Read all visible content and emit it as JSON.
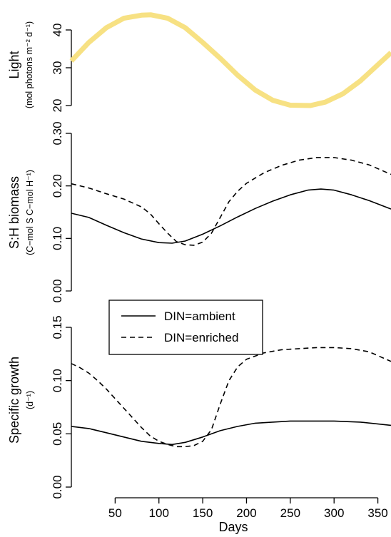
{
  "chart_data": [
    {
      "type": "line",
      "panel": "light",
      "ylabel": "Light",
      "ylabel_units": "(mol photons m⁻² d⁻¹)",
      "xlim": [
        0,
        365
      ],
      "ylim": [
        18,
        46
      ],
      "yticks": [
        "20",
        "30",
        "40"
      ],
      "line_color": "#f7e183",
      "series": [
        {
          "x": [
            0,
            20,
            40,
            60,
            80,
            91,
            110,
            130,
            150,
            170,
            190,
            210,
            230,
            250,
            273,
            290,
            310,
            330,
            350,
            365
          ],
          "values": [
            31.8,
            36.7,
            40.6,
            43.1,
            43.9,
            44.0,
            43.1,
            40.6,
            36.7,
            32.5,
            28.0,
            24.1,
            21.4,
            20.1,
            20.0,
            20.9,
            23.1,
            26.5,
            30.8,
            34.0
          ]
        }
      ]
    },
    {
      "type": "line",
      "panel": "sh-biomass",
      "ylabel": "S:H biomass",
      "ylabel_units": "(C−mol S C−mol H⁻¹)",
      "xlim": [
        0,
        365
      ],
      "ylim": [
        0,
        0.3
      ],
      "yticks": [
        "0.00",
        "0.10",
        "0.20",
        "0.30"
      ],
      "series": [
        {
          "name": "DIN=ambient",
          "dash": "solid",
          "x": [
            0,
            20,
            40,
            60,
            80,
            100,
            115,
            130,
            150,
            170,
            190,
            210,
            230,
            250,
            270,
            285,
            300,
            320,
            340,
            365
          ],
          "values": [
            0.148,
            0.14,
            0.125,
            0.111,
            0.099,
            0.092,
            0.091,
            0.095,
            0.108,
            0.124,
            0.141,
            0.157,
            0.171,
            0.183,
            0.192,
            0.194,
            0.192,
            0.183,
            0.172,
            0.156
          ]
        },
        {
          "name": "DIN=enriched",
          "dash": "dashed",
          "x": [
            0,
            20,
            40,
            60,
            80,
            90,
            100,
            110,
            120,
            130,
            140,
            150,
            160,
            170,
            180,
            190,
            200,
            220,
            240,
            260,
            280,
            300,
            320,
            340,
            365
          ],
          "values": [
            0.204,
            0.196,
            0.185,
            0.175,
            0.16,
            0.147,
            0.128,
            0.11,
            0.094,
            0.088,
            0.087,
            0.093,
            0.11,
            0.14,
            0.17,
            0.19,
            0.205,
            0.225,
            0.239,
            0.249,
            0.254,
            0.254,
            0.249,
            0.24,
            0.222
          ]
        }
      ]
    },
    {
      "type": "line",
      "panel": "specific-growth",
      "ylabel": "Specific growth",
      "ylabel_units": "(d⁻¹)",
      "xlabel": "Days",
      "xlim": [
        0,
        365
      ],
      "ylim": [
        0,
        0.15
      ],
      "xticks": [
        50,
        100,
        150,
        200,
        250,
        300,
        350
      ],
      "yticks": [
        "0.00",
        "0.05",
        "0.10",
        "0.15"
      ],
      "legend": {
        "position": "top-left",
        "entries": [
          "DIN=ambient",
          "DIN=enriched"
        ]
      },
      "series": [
        {
          "name": "DIN=ambient",
          "dash": "solid",
          "x": [
            0,
            20,
            40,
            60,
            80,
            100,
            115,
            130,
            150,
            170,
            190,
            210,
            230,
            250,
            270,
            300,
            330,
            365
          ],
          "values": [
            0.057,
            0.055,
            0.051,
            0.047,
            0.043,
            0.041,
            0.04,
            0.042,
            0.047,
            0.053,
            0.057,
            0.06,
            0.061,
            0.062,
            0.062,
            0.062,
            0.061,
            0.058
          ]
        },
        {
          "name": "DIN=enriched",
          "dash": "dashed",
          "x": [
            0,
            10,
            20,
            30,
            40,
            50,
            60,
            70,
            80,
            90,
            100,
            110,
            120,
            130,
            140,
            150,
            160,
            170,
            180,
            190,
            200,
            220,
            240,
            260,
            280,
            300,
            320,
            340,
            365
          ],
          "values": [
            0.116,
            0.112,
            0.107,
            0.1,
            0.092,
            0.083,
            0.074,
            0.065,
            0.056,
            0.048,
            0.043,
            0.04,
            0.038,
            0.038,
            0.039,
            0.043,
            0.054,
            0.078,
            0.1,
            0.113,
            0.12,
            0.126,
            0.129,
            0.13,
            0.131,
            0.131,
            0.13,
            0.127,
            0.118
          ]
        }
      ]
    }
  ]
}
